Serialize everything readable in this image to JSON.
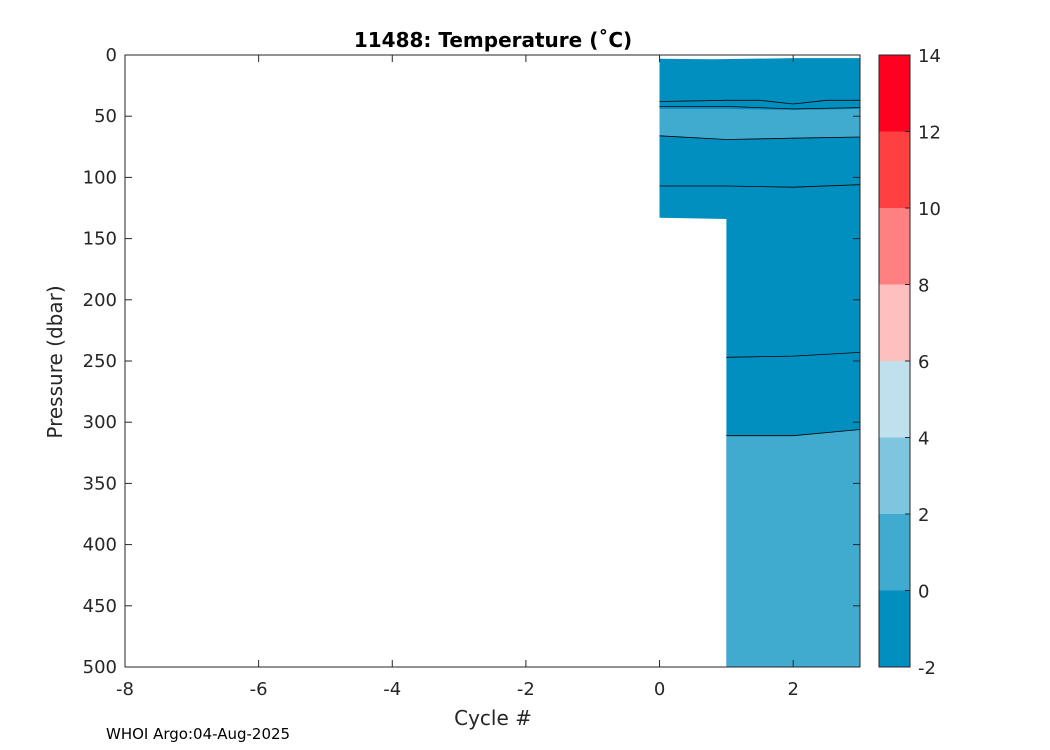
{
  "chart_data": {
    "type": "heatmap",
    "title": "11488:  Temperature (˚C)",
    "xlabel": "Cycle #",
    "ylabel": "Pressure (dbar)",
    "xlim": [
      -8,
      3
    ],
    "ylim": [
      0,
      500
    ],
    "y_reversed": true,
    "x_ticks": [
      -8,
      -6,
      -4,
      -2,
      0,
      2
    ],
    "y_ticks": [
      0,
      50,
      100,
      150,
      200,
      250,
      300,
      350,
      400,
      450,
      500
    ],
    "colorbar": {
      "levels": [
        -2,
        0,
        2,
        4,
        6,
        8,
        10,
        12,
        14
      ],
      "tick_labels": [
        "-2",
        "0",
        "2",
        "4",
        "6",
        "8",
        "10",
        "12",
        "14"
      ],
      "colors": [
        "#008fbf",
        "#40aacf",
        "#80c5df",
        "#bfe1ee",
        "#ffbfbf",
        "#ff8080",
        "#ff4040",
        "#ff0020"
      ]
    },
    "fields": [
      {
        "color": "#008fbf",
        "points": [
          [
            0,
            3
          ],
          [
            0.8,
            3.5
          ],
          [
            2,
            2.5
          ],
          [
            3,
            2.5
          ],
          [
            3,
            500
          ],
          [
            1,
            500
          ],
          [
            1,
            134
          ],
          [
            0,
            133
          ]
        ]
      },
      {
        "color": "#40aacf",
        "points": [
          [
            0,
            44
          ],
          [
            1,
            44
          ],
          [
            2,
            45
          ],
          [
            3,
            44
          ],
          [
            3,
            67
          ],
          [
            2,
            68
          ],
          [
            1,
            69
          ],
          [
            0,
            66
          ]
        ]
      },
      {
        "color": "#40aacf",
        "points": [
          [
            1,
            311
          ],
          [
            2,
            311
          ],
          [
            3,
            306
          ],
          [
            3,
            500
          ],
          [
            1,
            500
          ]
        ]
      }
    ],
    "contours": [
      {
        "points": [
          [
            0,
            38
          ],
          [
            1,
            37
          ],
          [
            1.5,
            37
          ],
          [
            2,
            40
          ],
          [
            2.5,
            37
          ],
          [
            3,
            37
          ]
        ]
      },
      {
        "points": [
          [
            0,
            42
          ],
          [
            1,
            42
          ],
          [
            2,
            44
          ],
          [
            3,
            43
          ]
        ]
      },
      {
        "points": [
          [
            0,
            66
          ],
          [
            1,
            69
          ],
          [
            2,
            68
          ],
          [
            3,
            67
          ]
        ]
      },
      {
        "points": [
          [
            0,
            107
          ],
          [
            1,
            107
          ],
          [
            2,
            108
          ],
          [
            3,
            106
          ]
        ]
      },
      {
        "points": [
          [
            1,
            247
          ],
          [
            2,
            246
          ],
          [
            3,
            243
          ]
        ]
      },
      {
        "points": [
          [
            1,
            311
          ],
          [
            2,
            311
          ],
          [
            3,
            306
          ]
        ]
      }
    ]
  },
  "footer": "WHOI Argo:04-Aug-2025"
}
